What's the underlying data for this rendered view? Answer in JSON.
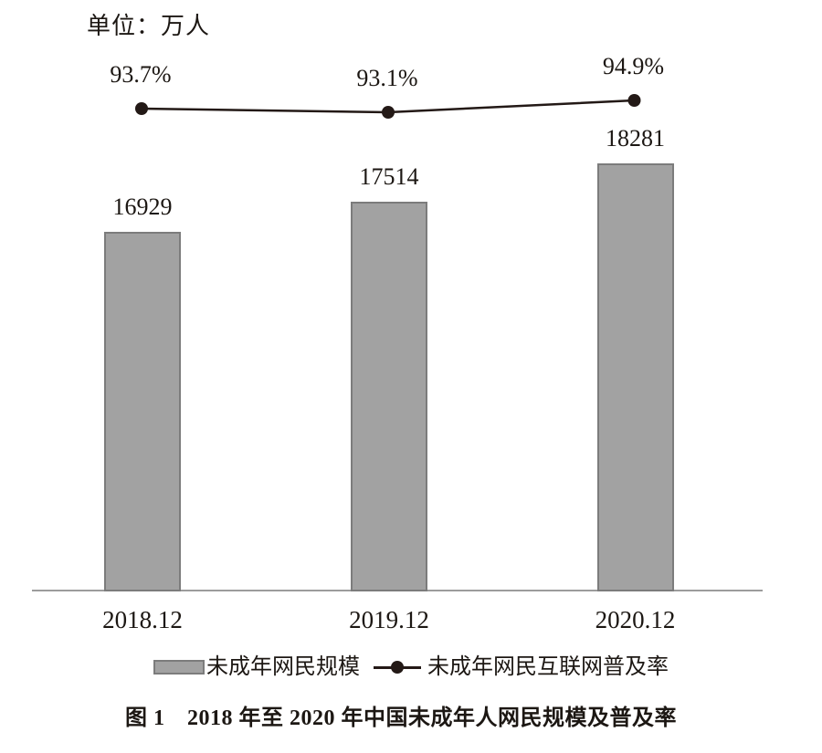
{
  "unit_label": "单位：万人",
  "caption": "图 1　2018 年至 2020 年中国未成年人网民规模及普及率",
  "legend": {
    "bar_label": "未成年网民规模",
    "line_label": "未成年网民互联网普及率"
  },
  "colors": {
    "bar_fill": "#a2a2a2",
    "bar_border": "#7c7c7c",
    "line": "#231916",
    "axis": "#9c9c9c",
    "text": "#1c1713"
  },
  "chart_data": {
    "type": "bar",
    "title": "图 1　2018 年至 2020 年中国未成年人网民规模及普及率",
    "unit_label": "单位：万人",
    "categories": [
      "2018.12",
      "2019.12",
      "2020.12"
    ],
    "series": [
      {
        "name": "未成年网民规模",
        "type": "bar",
        "unit": "万人",
        "values": [
          16929,
          17514,
          18281
        ],
        "value_labels": [
          "16929",
          "17514",
          "18281"
        ]
      },
      {
        "name": "未成年网民互联网普及率",
        "type": "line",
        "unit": "%",
        "values": [
          93.7,
          93.1,
          94.9
        ],
        "value_labels": [
          "93.7%",
          "93.1%",
          "94.9%"
        ]
      }
    ],
    "xlabel": "",
    "ylabel": "",
    "grid": false,
    "legend_position": "bottom",
    "bar_axis_starts_at_zero": false
  }
}
